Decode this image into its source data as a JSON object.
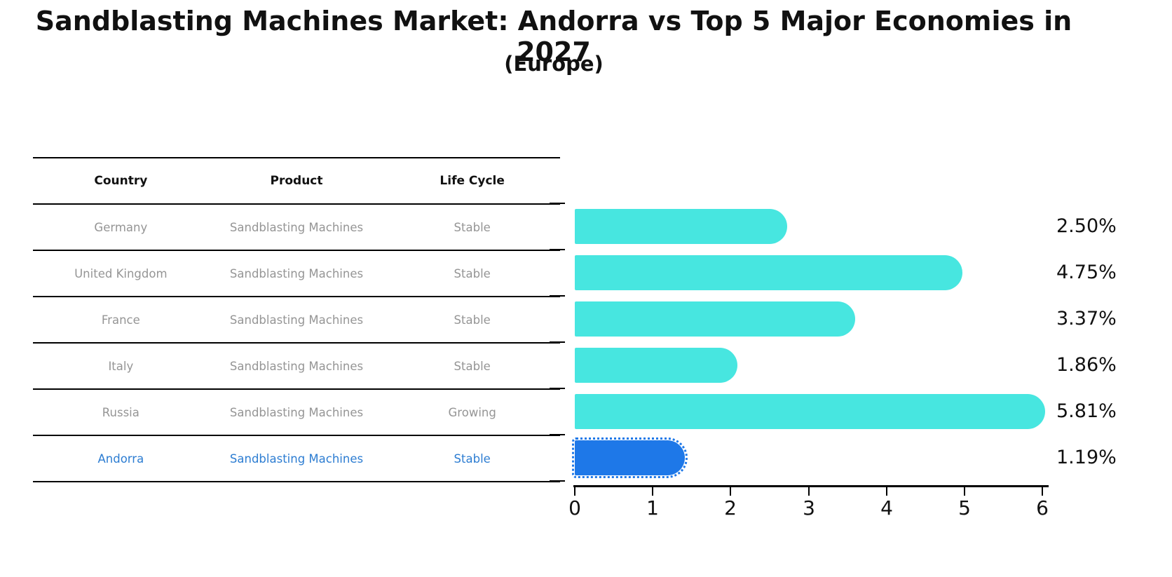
{
  "header": {
    "title": "Sandblasting Machines Market: Andorra vs Top 5 Major Economies in 2027",
    "subtitle": "(Europe)"
  },
  "table": {
    "columns": [
      "Country",
      "Product",
      "Life Cycle"
    ],
    "rows": [
      {
        "country": "Germany",
        "product": "Sandblasting Machines",
        "life_cycle": "Stable"
      },
      {
        "country": "United Kingdom",
        "product": "Sandblasting Machines",
        "life_cycle": "Stable"
      },
      {
        "country": "France",
        "product": "Sandblasting Machines",
        "life_cycle": "Stable"
      },
      {
        "country": "Italy",
        "product": "Sandblasting Machines",
        "life_cycle": "Stable"
      },
      {
        "country": "Russia",
        "product": "Sandblasting Machines",
        "life_cycle": "Growing"
      },
      {
        "country": "Andorra",
        "product": "Sandblasting Machines",
        "life_cycle": "Stable"
      }
    ],
    "highlight_row": 5
  },
  "chart_data": {
    "type": "bar",
    "orientation": "horizontal",
    "title": "Sandblasting Machines Market: Andorra vs Top 5 Major Economies in 2027",
    "subtitle": "(Europe)",
    "categories": [
      "Germany",
      "United Kingdom",
      "France",
      "Italy",
      "Russia",
      "Andorra"
    ],
    "values": [
      2.5,
      4.75,
      3.37,
      1.86,
      5.81,
      1.19
    ],
    "value_labels": [
      "2.50%",
      "4.75%",
      "3.37%",
      "1.86%",
      "5.81%",
      "1.19%"
    ],
    "xlabel": "",
    "ylabel": "",
    "xlim": [
      0,
      6
    ],
    "xticks": [
      "0",
      "1",
      "2",
      "3",
      "4",
      "5",
      "6"
    ],
    "grid": false,
    "legend": false,
    "highlight_index": 5
  },
  "colors": {
    "bar": "#47E6E0",
    "highlight_bar": "#1E78E8",
    "highlight_text": "#2D7DD2",
    "row_text": "#959595",
    "header_text": "#111111",
    "axis": "#000000"
  }
}
